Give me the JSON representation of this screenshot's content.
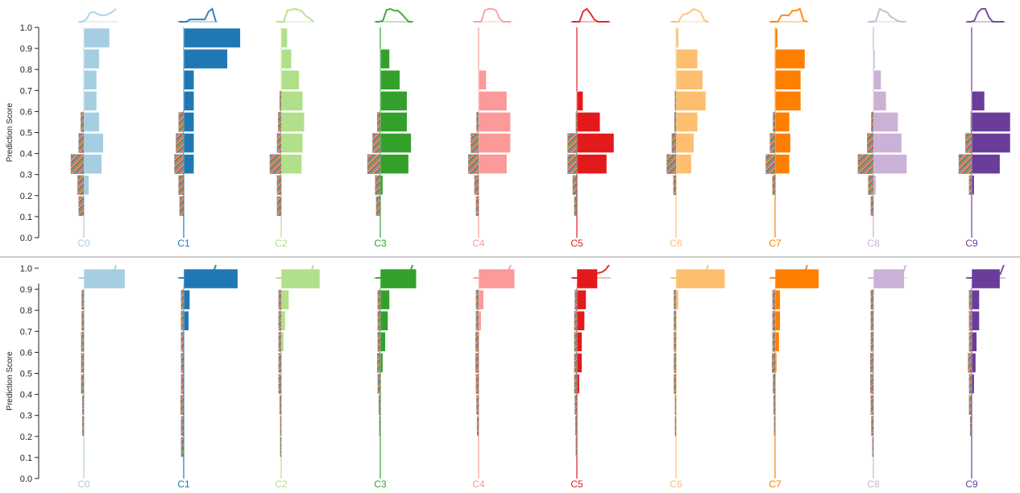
{
  "chart_data": {
    "type": "bar",
    "ylabel": "Prediction Score",
    "y_ticks": [
      "0.0",
      "0.1",
      "0.2",
      "0.3",
      "0.4",
      "0.5",
      "0.6",
      "0.7",
      "0.8",
      "0.9",
      "1.0"
    ],
    "ylim": [
      0,
      1
    ],
    "bin_width": 0.1,
    "orientation": "horizontal-histograms",
    "classes": [
      "C0",
      "C1",
      "C2",
      "C3",
      "C4",
      "C5",
      "C6",
      "C7",
      "C8",
      "C9"
    ],
    "class_colors": [
      "#a6cee3",
      "#1f78b4",
      "#b2df8a",
      "#33a02c",
      "#fb9a99",
      "#e31a1c",
      "#fdbf6f",
      "#ff7f00",
      "#cab2d6",
      "#6a3d9a"
    ],
    "panels": [
      {
        "name": "top",
        "histograms": [
          {
            "class": "C0",
            "tp": [
              0,
              0,
              0.1,
              0.35,
              0.38,
              0.3,
              0.25,
              0.25,
              0.3,
              0.38,
              0.5
            ],
            "fp": [
              0,
              0.1,
              0.12,
              0.25,
              0.1,
              0.06,
              0,
              0,
              0,
              0,
              0
            ]
          },
          {
            "class": "C1",
            "tp": [
              0,
              0,
              0,
              0.2,
              0.2,
              0.2,
              0.2,
              0.2,
              0.85,
              1.1,
              0
            ],
            "fp": [
              0,
              0.08,
              0.1,
              0.18,
              0.15,
              0.1,
              0,
              0,
              0,
              0,
              0
            ]
          },
          {
            "class": "C2",
            "tp": [
              0,
              0,
              0,
              0.4,
              0.42,
              0.45,
              0.42,
              0.35,
              0.2,
              0.12,
              0
            ],
            "fp": [
              0,
              0.08,
              0.08,
              0.22,
              0.08,
              0.06,
              0.03,
              0,
              0,
              0,
              0
            ]
          },
          {
            "class": "C3",
            "tp": [
              0,
              0,
              0.05,
              0.55,
              0.6,
              0.52,
              0.52,
              0.38,
              0.18,
              0,
              0
            ],
            "fp": [
              0,
              0.08,
              0.1,
              0.25,
              0.15,
              0.06,
              0,
              0,
              0,
              0,
              0
            ]
          },
          {
            "class": "C4",
            "tp": [
              0,
              0,
              0,
              0.55,
              0.62,
              0.62,
              0.55,
              0.15,
              0,
              0,
              0
            ],
            "fp": [
              0,
              0.05,
              0.08,
              0.2,
              0.15,
              0.04,
              0,
              0,
              0,
              0,
              0
            ]
          },
          {
            "class": "C5",
            "tp": [
              0,
              0,
              0,
              0.58,
              0.72,
              0.45,
              0.12,
              0,
              0,
              0,
              0
            ],
            "fp": [
              0,
              0.05,
              0.08,
              0.18,
              0.18,
              0.02,
              0,
              0,
              0,
              0,
              0
            ]
          },
          {
            "class": "C6",
            "tp": [
              0,
              0,
              0,
              0.3,
              0.35,
              0.42,
              0.58,
              0.52,
              0.42,
              0.05,
              0
            ],
            "fp": [
              0,
              0,
              0.05,
              0.18,
              0.08,
              0.03,
              0.02,
              0,
              0,
              0,
              0
            ]
          },
          {
            "class": "C7",
            "tp": [
              0,
              0,
              0,
              0.28,
              0.3,
              0.28,
              0.5,
              0.5,
              0.58,
              0.05,
              0
            ],
            "fp": [
              0,
              0,
              0.05,
              0.18,
              0.1,
              0.04,
              0,
              0,
              0,
              0,
              0
            ]
          },
          {
            "class": "C8",
            "tp": [
              0,
              0,
              0.05,
              0.65,
              0.55,
              0.48,
              0.25,
              0.15,
              0.03,
              0,
              0
            ],
            "fp": [
              0,
              0.05,
              0.1,
              0.3,
              0.12,
              0.04,
              0,
              0,
              0,
              0,
              0
            ]
          },
          {
            "class": "C9",
            "tp": [
              0,
              0,
              0.05,
              0.55,
              0.75,
              0.75,
              0.25,
              0,
              0,
              0,
              0
            ],
            "fp": [
              0,
              0,
              0.05,
              0.25,
              0.12,
              0.02,
              0,
              0,
              0,
              0,
              0
            ]
          }
        ]
      },
      {
        "name": "bottom",
        "histograms": [
          {
            "class": "C0",
            "tp": [
              0,
              0,
              0,
              0,
              0,
              0,
              0,
              0,
              0,
              0.15,
              0.8
            ],
            "fp": [
              0,
              0,
              0.03,
              0.03,
              0.05,
              0.05,
              0.05,
              0.04,
              0.04,
              0,
              0
            ]
          },
          {
            "class": "C1",
            "tp": [
              0,
              0,
              0,
              0,
              0,
              0,
              0,
              0.1,
              0.12,
              0.25,
              1.05
            ],
            "fp": [
              0,
              0.05,
              0.05,
              0.06,
              0.05,
              0.05,
              0.05,
              0.05,
              0.05,
              0,
              0
            ]
          },
          {
            "class": "C2",
            "tp": [
              0,
              0,
              0,
              0,
              0,
              0,
              0.05,
              0.08,
              0.15,
              0.15,
              0.75
            ],
            "fp": [
              0,
              0.02,
              0.02,
              0.03,
              0.05,
              0.05,
              0.05,
              0.05,
              0.05,
              0,
              0
            ]
          },
          {
            "class": "C3",
            "tp": [
              0,
              0,
              0,
              0,
              0,
              0.05,
              0.1,
              0.15,
              0.18,
              0.1,
              0.7
            ],
            "fp": [
              0,
              0,
              0.02,
              0.03,
              0.05,
              0.06,
              0.05,
              0.05,
              0.05,
              0,
              0
            ]
          },
          {
            "class": "C4",
            "tp": [
              0,
              0,
              0,
              0,
              0,
              0,
              0,
              0.05,
              0.1,
              0.25,
              0.7
            ],
            "fp": [
              0,
              0,
              0.03,
              0.04,
              0.05,
              0.06,
              0.06,
              0.05,
              0.05,
              0,
              0
            ]
          },
          {
            "class": "C5",
            "tp": [
              0,
              0,
              0,
              0,
              0.05,
              0.1,
              0.1,
              0.15,
              0.18,
              0.25,
              0.4
            ],
            "fp": [
              0,
              0.02,
              0.03,
              0.04,
              0.05,
              0.05,
              0.05,
              0.05,
              0.04,
              0,
              0
            ]
          },
          {
            "class": "C6",
            "tp": [
              0,
              0,
              0,
              0,
              0,
              0,
              0,
              0,
              0.05,
              0.15,
              0.95
            ],
            "fp": [
              0,
              0,
              0.02,
              0.02,
              0.04,
              0.04,
              0.04,
              0.04,
              0.04,
              0,
              0
            ]
          },
          {
            "class": "C7",
            "tp": [
              0,
              0,
              0,
              0,
              0,
              0.03,
              0.08,
              0.1,
              0.1,
              0.15,
              0.85
            ],
            "fp": [
              0,
              0,
              0.02,
              0.03,
              0.04,
              0.06,
              0.05,
              0.05,
              0.05,
              0,
              0
            ]
          },
          {
            "class": "C8",
            "tp": [
              0,
              0,
              0,
              0,
              0,
              0,
              0,
              0,
              0,
              0.02,
              0.6
            ],
            "fp": [
              0,
              0.02,
              0.04,
              0.05,
              0.06,
              0.06,
              0.05,
              0.05,
              0.05,
              0,
              0
            ]
          },
          {
            "class": "C9",
            "tp": [
              0,
              0,
              0,
              0,
              0.05,
              0.08,
              0.1,
              0.15,
              0.15,
              0.15,
              0.55
            ],
            "fp": [
              0,
              0,
              0.03,
              0.05,
              0.05,
              0.07,
              0.05,
              0.05,
              0.05,
              0,
              0
            ]
          }
        ]
      }
    ]
  }
}
